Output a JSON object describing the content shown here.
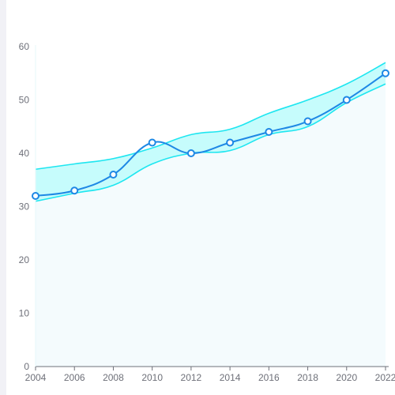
{
  "chart_data": {
    "type": "line",
    "x": [
      2004,
      2006,
      2008,
      2010,
      2012,
      2014,
      2016,
      2018,
      2020,
      2022
    ],
    "series": [
      {
        "values": [
          32,
          33,
          36,
          42,
          40,
          42,
          44,
          46,
          50,
          55
        ]
      }
    ],
    "band": {
      "upper": [
        37,
        38,
        39,
        41,
        43.5,
        44.5,
        47.5,
        50,
        53,
        57
      ],
      "lower": [
        31,
        32.5,
        34,
        38,
        40,
        40.5,
        43.5,
        45,
        49.5,
        53
      ]
    },
    "x_ticks": [
      "2004",
      "2006",
      "2008",
      "2010",
      "2012",
      "2014",
      "2016",
      "2018",
      "2020",
      "2022"
    ],
    "y_ticks": [
      "0",
      "10",
      "20",
      "30",
      "40",
      "50",
      "60"
    ],
    "xlim": [
      2004,
      2022
    ],
    "ylim": [
      0,
      60
    ],
    "grid": false,
    "colors": {
      "line": "#1e88e5",
      "band_fill": "#b3fbfb",
      "band_edge": "#1ee6f0",
      "area_fill": "#f4fbfd",
      "axis": "#6e7079"
    }
  }
}
